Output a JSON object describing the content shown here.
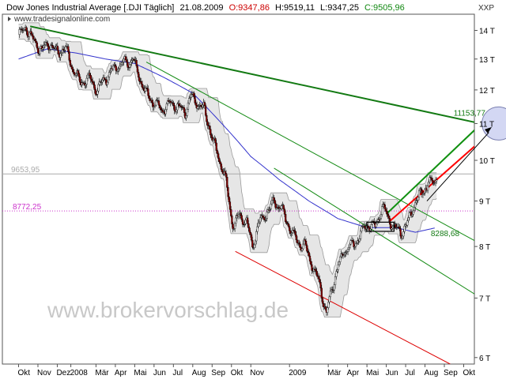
{
  "header": {
    "instrument": "Dow Jones Industrial Average [.DJI  Täglich]",
    "date": "21.08.2009",
    "open": "O:9347,86",
    "high": "H:9519,11",
    "low": "L:9347,25",
    "close": "C:9505,96",
    "source": "www.tradesignalonline.com",
    "scale_label": "XXP"
  },
  "watermark": "www.brokervorschlag.de",
  "colors": {
    "candle_up": "#ffffff",
    "candle_down": "#8b0000",
    "candle_outline": "#000000",
    "ma": "#3333cc",
    "band_fill": "#e6e6e6",
    "band_line": "#9a9a9a",
    "trend_major": "#137a13",
    "channel": "#128a12",
    "channel_up": "#109010",
    "red_channel": "#dd0000",
    "target": "#ff0000",
    "level_9653": "#aaaaaa",
    "level_8772": "#cc33cc",
    "circle_fill": "#c8cdf0"
  },
  "chart_data": {
    "type": "candlestick",
    "y_unit": "T",
    "ylim": [
      5.9,
      14.6
    ],
    "yticks": [
      {
        "value": 14,
        "label": "14 T"
      },
      {
        "value": 13,
        "label": "13 T"
      },
      {
        "value": 12,
        "label": "12 T"
      },
      {
        "value": 11,
        "label": "11 T"
      },
      {
        "value": 10,
        "label": "10 T"
      },
      {
        "value": 9,
        "label": "9 T"
      },
      {
        "value": 8,
        "label": "8 T"
      },
      {
        "value": 7,
        "label": "7 T"
      },
      {
        "value": 6,
        "label": "6 T"
      }
    ],
    "x_labels": [
      {
        "m": 0,
        "label": "Okt"
      },
      {
        "m": 1,
        "label": "Nov"
      },
      {
        "m": 2,
        "label": "Dez"
      },
      {
        "m": 2.7,
        "label": "2008"
      },
      {
        "m": 4,
        "label": "Mär"
      },
      {
        "m": 5,
        "label": "Apr"
      },
      {
        "m": 6,
        "label": "Mai"
      },
      {
        "m": 7,
        "label": "Jun"
      },
      {
        "m": 8,
        "label": "Jul"
      },
      {
        "m": 9,
        "label": "Aug"
      },
      {
        "m": 10,
        "label": "Sep"
      },
      {
        "m": 11,
        "label": "Okt"
      },
      {
        "m": 12,
        "label": "Nov"
      },
      {
        "m": 14,
        "label": "2009"
      },
      {
        "m": 16,
        "label": "Mär"
      },
      {
        "m": 17,
        "label": "Apr"
      },
      {
        "m": 18,
        "label": "Mai"
      },
      {
        "m": 19,
        "label": "Jun"
      },
      {
        "m": 20,
        "label": "Jul"
      },
      {
        "m": 21,
        "label": "Aug"
      },
      {
        "m": 22,
        "label": "Sep"
      },
      {
        "m": 23,
        "label": "Okt"
      }
    ],
    "price_anchors": [
      [
        0,
        13.85
      ],
      [
        0.4,
        14.1
      ],
      [
        0.8,
        13.6
      ],
      [
        1.2,
        13.3
      ],
      [
        1.6,
        13.55
      ],
      [
        2.0,
        13.2
      ],
      [
        2.4,
        13.4
      ],
      [
        2.8,
        12.7
      ],
      [
        3.2,
        12.2
      ],
      [
        3.6,
        12.4
      ],
      [
        4.0,
        12.0
      ],
      [
        4.4,
        12.3
      ],
      [
        4.8,
        12.6
      ],
      [
        5.2,
        12.8
      ],
      [
        5.6,
        12.9
      ],
      [
        5.9,
        13.0
      ],
      [
        6.2,
        12.5
      ],
      [
        6.5,
        12.0
      ],
      [
        7.0,
        11.6
      ],
      [
        7.4,
        11.4
      ],
      [
        7.8,
        11.6
      ],
      [
        8.2,
        11.5
      ],
      [
        8.6,
        11.3
      ],
      [
        8.9,
        11.8
      ],
      [
        9.2,
        11.6
      ],
      [
        9.6,
        11.4
      ],
      [
        10.0,
        10.6
      ],
      [
        10.4,
        10.0
      ],
      [
        10.7,
        9.5
      ],
      [
        10.9,
        8.9
      ],
      [
        11.1,
        8.4
      ],
      [
        11.4,
        8.7
      ],
      [
        11.8,
        8.5
      ],
      [
        12.1,
        8.0
      ],
      [
        12.4,
        8.5
      ],
      [
        12.8,
        8.7
      ],
      [
        13.2,
        9.0
      ],
      [
        13.6,
        8.8
      ],
      [
        14.0,
        8.4
      ],
      [
        14.4,
        8.1
      ],
      [
        14.8,
        8.0
      ],
      [
        15.2,
        7.6
      ],
      [
        15.6,
        7.2
      ],
      [
        15.9,
        6.7
      ],
      [
        16.2,
        7.2
      ],
      [
        16.5,
        7.6
      ],
      [
        16.8,
        7.9
      ],
      [
        17.2,
        8.0
      ],
      [
        17.6,
        8.2
      ],
      [
        18.0,
        8.5
      ],
      [
        18.4,
        8.4
      ],
      [
        18.8,
        8.9
      ],
      [
        19.1,
        8.6
      ],
      [
        19.4,
        8.4
      ],
      [
        19.8,
        8.3
      ],
      [
        20.1,
        8.5
      ],
      [
        20.4,
        8.9
      ],
      [
        20.8,
        9.2
      ],
      [
        21.2,
        9.4
      ],
      [
        21.6,
        9.5
      ]
    ],
    "moving_average": [
      [
        0,
        13.0
      ],
      [
        1.5,
        13.35
      ],
      [
        3.0,
        13.2
      ],
      [
        4.5,
        13.0
      ],
      [
        6.0,
        12.85
      ],
      [
        7.5,
        12.4
      ],
      [
        9.0,
        11.9
      ],
      [
        10.5,
        11.0
      ],
      [
        12.0,
        10.1
      ],
      [
        13.5,
        9.5
      ],
      [
        15.0,
        9.0
      ],
      [
        16.5,
        8.6
      ],
      [
        18.0,
        8.4
      ],
      [
        19.5,
        8.4
      ],
      [
        20.5,
        8.3
      ],
      [
        21.6,
        8.4
      ]
    ],
    "levels": [
      {
        "value": 9.6539,
        "label": "9653,95"
      },
      {
        "value": 8.7722,
        "label": "8772,25"
      }
    ],
    "annotations": [
      {
        "label": "11153,77",
        "m": 22.6,
        "value": 11.153
      },
      {
        "label": "8288,68",
        "m": 21.3,
        "value": 8.288
      }
    ],
    "trendlines": [
      {
        "name": "major-downtrend",
        "from": [
          0.6,
          14.15
        ],
        "to": [
          26.0,
          10.75
        ]
      },
      {
        "name": "channel-upper",
        "from": [
          6.6,
          12.9
        ],
        "to": [
          26.0,
          7.6
        ]
      },
      {
        "name": "channel-lower",
        "from": [
          13.2,
          9.8
        ],
        "to": [
          26.0,
          6.55
        ]
      },
      {
        "name": "red-lower",
        "from": [
          11.2,
          7.9
        ],
        "to": [
          22.3,
          5.9
        ]
      },
      {
        "name": "green-uptrend",
        "from": [
          19.0,
          8.7
        ],
        "to": [
          26.0,
          12.15
        ]
      },
      {
        "name": "red-target",
        "from": [
          19.2,
          8.55
        ],
        "to": [
          26.0,
          11.55
        ]
      }
    ],
    "target_circle": {
      "m": 24.8,
      "value": 11.0
    }
  }
}
